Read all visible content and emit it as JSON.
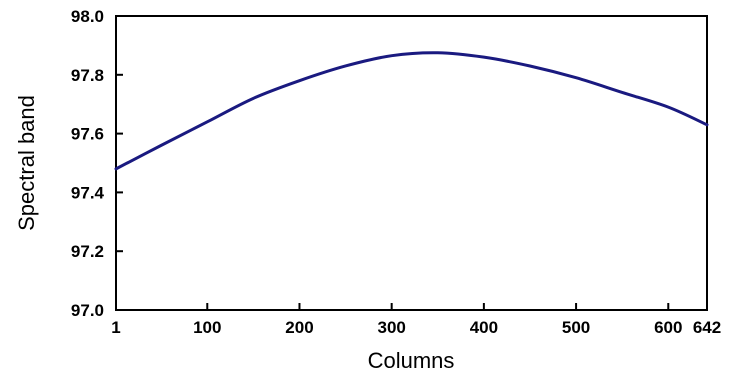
{
  "chart_data": {
    "type": "line",
    "title": "",
    "xlabel": "Columns",
    "ylabel": "Spectral band",
    "xlim": [
      1,
      642
    ],
    "ylim": [
      97.0,
      98.0
    ],
    "xticks": [
      1,
      100,
      200,
      300,
      400,
      500,
      600,
      642
    ],
    "yticks": [
      97.0,
      97.2,
      97.4,
      97.6,
      97.8,
      98.0
    ],
    "ytick_labels": [
      "97.0",
      "97.2",
      "97.4",
      "97.6",
      "97.8",
      "98.0"
    ],
    "grid": false,
    "line_color": "#1a1a80",
    "series": [
      {
        "x": [
          1,
          50,
          100,
          150,
          200,
          250,
          300,
          350,
          400,
          450,
          500,
          550,
          600,
          642
        ],
        "values": [
          97.48,
          97.56,
          97.64,
          97.72,
          97.78,
          97.83,
          97.865,
          97.875,
          97.86,
          97.83,
          97.79,
          97.74,
          97.69,
          97.63
        ]
      }
    ]
  }
}
